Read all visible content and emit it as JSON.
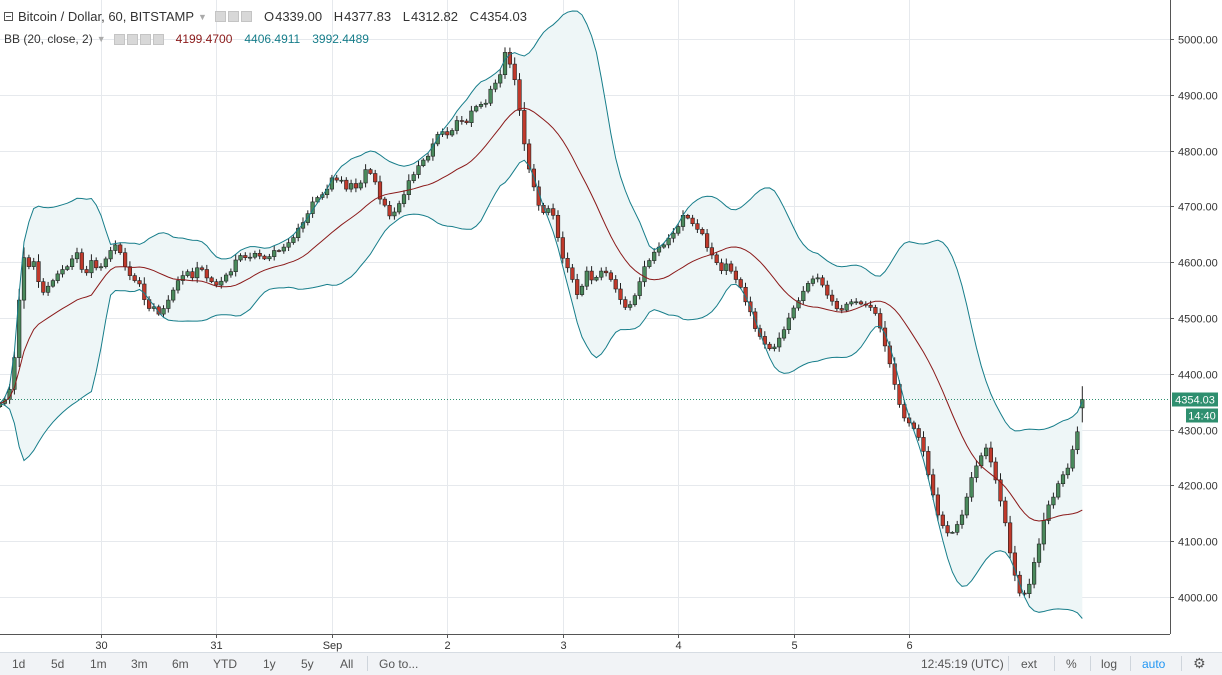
{
  "header": {
    "symbol": "Bitcoin / Dollar, 60, BITSTAMP",
    "ohlc": {
      "o_label": "O",
      "o": "4339.00",
      "h_label": "H",
      "h": "4377.83",
      "l_label": "L",
      "l": "4312.82",
      "c_label": "C",
      "c": "4354.03"
    }
  },
  "indicator": {
    "name": "BB (20, close, 2)",
    "basis": "4199.4700",
    "upper": "4406.4911",
    "lower": "3992.4489"
  },
  "colors": {
    "up": "#4a8a5c",
    "down": "#c0392b",
    "band": "#167d8a",
    "basis": "#8b1a1a",
    "fill": "#eef6f7",
    "price_badge": "#2f8f6f"
  },
  "last_price": {
    "label": "4354.03",
    "countdown": "14:40"
  },
  "bottom": {
    "timeframes": [
      "1d",
      "5d",
      "1m",
      "3m",
      "6m",
      "YTD",
      "1y",
      "5y",
      "All"
    ],
    "goto": "Go to...",
    "clock": "12:45:19 (UTC)",
    "ext": "ext",
    "percent": "%",
    "log": "log",
    "auto": "auto"
  },
  "chart_data": {
    "type": "candlestick",
    "interval_minutes": 60,
    "x_axis": {
      "tick_labels": [
        "30",
        "31",
        "Sep",
        "2",
        "3",
        "4",
        "5",
        "6"
      ]
    },
    "y_axis": {
      "tick_labels": [
        "4000.00",
        "4100.00",
        "4200.00",
        "4300.00",
        "4400.00",
        "4500.00",
        "4600.00",
        "4700.00",
        "4800.00",
        "4900.00",
        "5000.00"
      ],
      "range": [
        3930,
        5065
      ]
    },
    "grid": true,
    "last_close": 4354.03,
    "closes": [
      4347,
      4354,
      4372,
      4429,
      4532,
      4608,
      4592,
      4601,
      4565,
      4546,
      4557,
      4567,
      4579,
      4587,
      4592,
      4606,
      4617,
      4587,
      4581,
      4603,
      4590,
      4592,
      4606,
      4621,
      4631,
      4617,
      4592,
      4576,
      4567,
      4561,
      4533,
      4517,
      4520,
      4507,
      4517,
      4532,
      4550,
      4567,
      4576,
      4583,
      4572,
      4590,
      4587,
      4572,
      4565,
      4559,
      4566,
      4577,
      4583,
      4604,
      4612,
      4608,
      4609,
      4616,
      4611,
      4606,
      4610,
      4621,
      4620,
      4627,
      4635,
      4644,
      4661,
      4671,
      4687,
      4708,
      4716,
      4721,
      4731,
      4751,
      4747,
      4747,
      4731,
      4741,
      4733,
      4742,
      4766,
      4759,
      4744,
      4713,
      4702,
      4683,
      4690,
      4705,
      4721,
      4746,
      4757,
      4773,
      4783,
      4790,
      4812,
      4829,
      4834,
      4828,
      4836,
      4854,
      4853,
      4850,
      4871,
      4879,
      4883,
      4885,
      4910,
      4921,
      4936,
      4976,
      4955,
      4927,
      4872,
      4812,
      4767,
      4735,
      4702,
      4689,
      4696,
      4684,
      4644,
      4607,
      4590,
      4569,
      4542,
      4557,
      4584,
      4568,
      4573,
      4584,
      4581,
      4569,
      4552,
      4533,
      4519,
      4524,
      4540,
      4565,
      4592,
      4603,
      4618,
      4627,
      4631,
      4643,
      4652,
      4664,
      4684,
      4679,
      4669,
      4659,
      4651,
      4626,
      4613,
      4599,
      4585,
      4597,
      4584,
      4569,
      4555,
      4529,
      4511,
      4481,
      4467,
      4453,
      4445,
      4448,
      4464,
      4479,
      4500,
      4518,
      4531,
      4548,
      4562,
      4570,
      4572,
      4559,
      4541,
      4530,
      4517,
      4514,
      4525,
      4529,
      4529,
      4525,
      4523,
      4519,
      4508,
      4482,
      4450,
      4418,
      4381,
      4345,
      4321,
      4312,
      4302,
      4286,
      4261,
      4219,
      4183,
      4147,
      4128,
      4115,
      4116,
      4130,
      4147,
      4179,
      4214,
      4235,
      4253,
      4267,
      4242,
      4210,
      4172,
      4133,
      4079,
      4039,
      4007,
      4006,
      4023,
      4062,
      4095,
      4137,
      4165,
      4179,
      4203,
      4219,
      4231,
      4264,
      4296,
      4354
    ]
  }
}
